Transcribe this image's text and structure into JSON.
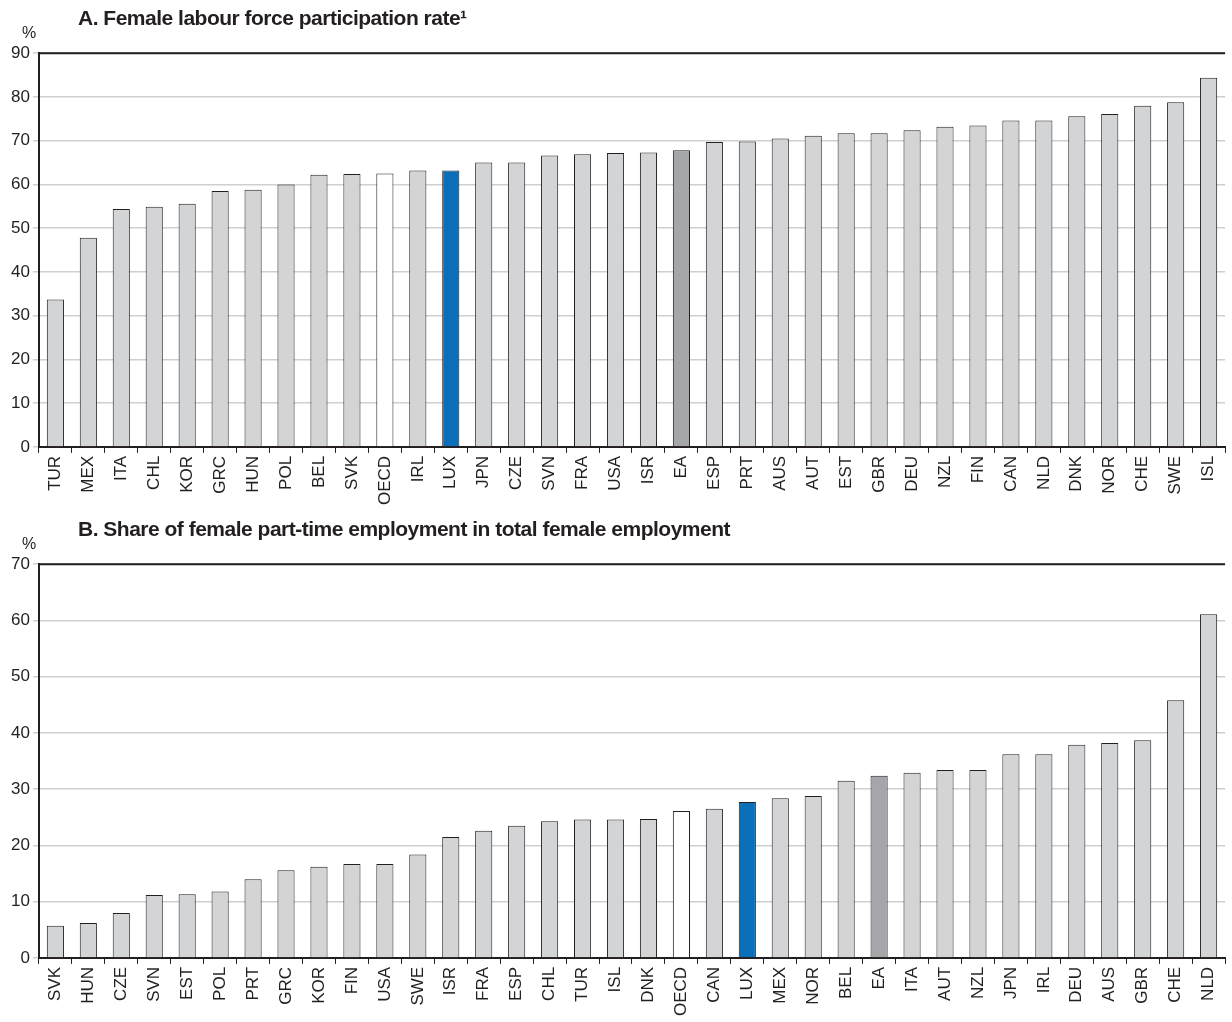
{
  "chart_data": [
    {
      "type": "bar",
      "title": "A. Female labour force participation rate¹",
      "ylabel": "%",
      "categories": [
        "TUR",
        "MEX",
        "ITA",
        "CHL",
        "KOR",
        "GRC",
        "HUN",
        "POL",
        "BEL",
        "SVK",
        "OECD",
        "IRL",
        "LUX",
        "JPN",
        "CZE",
        "SVN",
        "FRA",
        "USA",
        "ISR",
        "EA",
        "ESP",
        "PRT",
        "AUS",
        "AUT",
        "EST",
        "GBR",
        "DEU",
        "NZL",
        "FIN",
        "CAN",
        "NLD",
        "DNK",
        "NOR",
        "CHE",
        "SWE",
        "ISL"
      ],
      "values": [
        33.7,
        47.8,
        54.4,
        54.9,
        55.6,
        58.5,
        58.8,
        60.0,
        62.2,
        62.4,
        62.5,
        63.2,
        63.2,
        65.0,
        65.0,
        66.6,
        66.9,
        67.2,
        67.3,
        67.8,
        69.7,
        69.8,
        70.5,
        71.1,
        71.7,
        71.7,
        72.4,
        73.2,
        73.5,
        74.6,
        74.6,
        75.6,
        76.1,
        78.0,
        78.8,
        84.4
      ],
      "colors": [
        "#d3d4d6",
        "#d3d4d6",
        "#d3d4d6",
        "#d3d4d6",
        "#d3d4d6",
        "#d3d4d6",
        "#d3d4d6",
        "#d3d4d6",
        "#d3d4d6",
        "#d3d4d6",
        "#ffffff",
        "#d3d4d6",
        "#0a6eb8",
        "#d3d4d6",
        "#d3d4d6",
        "#d3d4d6",
        "#d3d4d6",
        "#d3d4d6",
        "#d3d4d6",
        "#a5a6aa",
        "#d3d4d6",
        "#d3d4d6",
        "#d3d4d6",
        "#d3d4d6",
        "#d3d4d6",
        "#d3d4d6",
        "#d3d4d6",
        "#d3d4d6",
        "#d3d4d6",
        "#d3d4d6",
        "#d3d4d6",
        "#d3d4d6",
        "#d3d4d6",
        "#d3d4d6",
        "#d3d4d6",
        "#d3d4d6"
      ],
      "ylim": [
        0,
        90
      ],
      "yticks": [
        0,
        10,
        20,
        30,
        40,
        50,
        60,
        70,
        80,
        90
      ],
      "grid": "y",
      "legend": false
    },
    {
      "type": "bar",
      "title": "B. Share of female part-time employment in total female employment",
      "ylabel": "%",
      "categories": [
        "SVK",
        "HUN",
        "CZE",
        "SVN",
        "EST",
        "POL",
        "PRT",
        "GRC",
        "KOR",
        "FIN",
        "USA",
        "SWE",
        "ISR",
        "FRA",
        "ESP",
        "CHL",
        "TUR",
        "ISL",
        "DNK",
        "OECD",
        "CAN",
        "LUX",
        "MEX",
        "NOR",
        "BEL",
        "EA",
        "ITA",
        "AUT",
        "NZL",
        "JPN",
        "IRL",
        "DEU",
        "AUS",
        "GBR",
        "CHE",
        "NLD"
      ],
      "values": [
        5.7,
        6.2,
        8.0,
        11.2,
        11.3,
        11.8,
        14.0,
        15.6,
        16.2,
        16.7,
        16.7,
        18.4,
        21.5,
        22.6,
        23.5,
        24.3,
        24.6,
        24.6,
        24.7,
        26.1,
        26.5,
        27.7,
        28.4,
        28.8,
        31.5,
        32.4,
        32.9,
        33.4,
        33.4,
        36.2,
        36.2,
        37.9,
        38.2,
        38.7,
        45.8,
        61.1
      ],
      "colors": [
        "#d3d4d6",
        "#d3d4d6",
        "#d3d4d6",
        "#d3d4d6",
        "#d3d4d6",
        "#d3d4d6",
        "#d3d4d6",
        "#d3d4d6",
        "#d3d4d6",
        "#d3d4d6",
        "#d3d4d6",
        "#d3d4d6",
        "#d3d4d6",
        "#d3d4d6",
        "#d3d4d6",
        "#d3d4d6",
        "#d3d4d6",
        "#d3d4d6",
        "#d3d4d6",
        "#ffffff",
        "#d3d4d6",
        "#0a6eb8",
        "#d3d4d6",
        "#d3d4d6",
        "#d3d4d6",
        "#a5a6aa",
        "#d3d4d6",
        "#d3d4d6",
        "#d3d4d6",
        "#d3d4d6",
        "#d3d4d6",
        "#d3d4d6",
        "#d3d4d6",
        "#d3d4d6",
        "#d3d4d6",
        "#d3d4d6"
      ],
      "ylim": [
        0,
        70
      ],
      "yticks": [
        0,
        10,
        20,
        30,
        40,
        50,
        60,
        70
      ],
      "grid": "y",
      "legend": false
    }
  ]
}
